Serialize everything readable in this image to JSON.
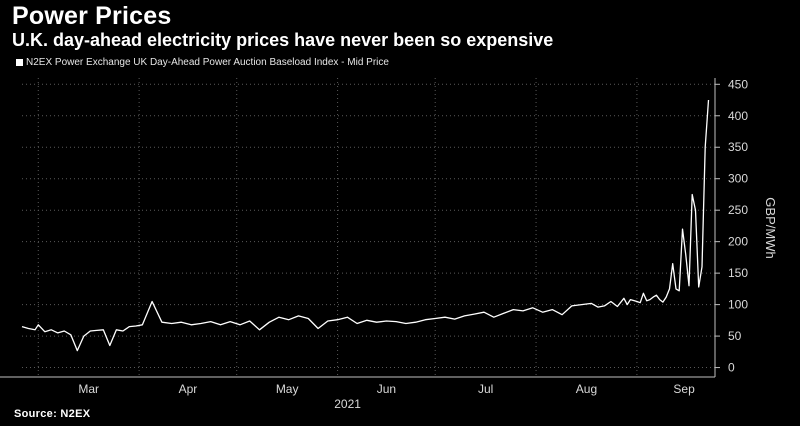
{
  "title": "Power Prices",
  "subtitle": "U.K. day-ahead electricity prices have never been so expensive",
  "source": "Source: N2EX",
  "colors": {
    "background": "#000000",
    "line": "#ffffff",
    "grid": "#5a5a5a"
  },
  "chart_data": {
    "type": "line",
    "series": [
      {
        "name": "N2EX Power Exchange UK Day-Ahead Power Auction Baseload Index - Mid Price",
        "x": [
          "2021-02-24",
          "2021-02-26",
          "2021-02-28",
          "2021-03-01",
          "2021-03-03",
          "2021-03-05",
          "2021-03-07",
          "2021-03-09",
          "2021-03-11",
          "2021-03-13",
          "2021-03-15",
          "2021-03-17",
          "2021-03-19",
          "2021-03-21",
          "2021-03-23",
          "2021-03-25",
          "2021-03-27",
          "2021-03-29",
          "2021-03-31",
          "2021-04-02",
          "2021-04-05",
          "2021-04-08",
          "2021-04-11",
          "2021-04-14",
          "2021-04-17",
          "2021-04-20",
          "2021-04-23",
          "2021-04-26",
          "2021-04-29",
          "2021-05-02",
          "2021-05-05",
          "2021-05-08",
          "2021-05-11",
          "2021-05-14",
          "2021-05-17",
          "2021-05-20",
          "2021-05-23",
          "2021-05-26",
          "2021-05-29",
          "2021-06-01",
          "2021-06-04",
          "2021-06-07",
          "2021-06-10",
          "2021-06-13",
          "2021-06-16",
          "2021-06-19",
          "2021-06-22",
          "2021-06-25",
          "2021-06-28",
          "2021-07-01",
          "2021-07-04",
          "2021-07-07",
          "2021-07-10",
          "2021-07-13",
          "2021-07-16",
          "2021-07-19",
          "2021-07-22",
          "2021-07-25",
          "2021-07-28",
          "2021-07-31",
          "2021-08-03",
          "2021-08-06",
          "2021-08-09",
          "2021-08-12",
          "2021-08-15",
          "2021-08-18",
          "2021-08-20",
          "2021-08-22",
          "2021-08-24",
          "2021-08-26",
          "2021-08-28",
          "2021-08-29",
          "2021-08-30",
          "2021-09-01",
          "2021-09-02",
          "2021-09-03",
          "2021-09-04",
          "2021-09-05",
          "2021-09-06",
          "2021-09-07",
          "2021-09-08",
          "2021-09-09",
          "2021-09-10"
        ],
        "values": [
          65,
          62,
          60,
          68,
          57,
          60,
          55,
          58,
          52,
          27,
          50,
          58,
          59,
          60,
          35,
          60,
          58,
          65,
          66,
          68,
          105,
          72,
          70,
          72,
          68,
          70,
          73,
          68,
          73,
          68,
          74,
          60,
          72,
          80,
          76,
          82,
          78,
          62,
          74,
          76,
          80,
          70,
          75,
          72,
          74,
          73,
          70,
          72,
          76,
          78,
          80,
          77,
          82,
          85,
          88,
          80,
          86,
          92,
          90,
          95,
          88,
          92,
          84,
          98,
          100,
          102,
          96,
          98,
          105,
          97,
          110,
          100,
          108,
          105,
          103,
          118,
          106,
          108,
          112,
          115,
          108,
          104,
          112
        ]
      }
    ],
    "tail_points": [
      {
        "x": "2021-09-10",
        "y": 112
      },
      {
        "x": "2021-09-11",
        "y": 125
      },
      {
        "x": "2021-09-12",
        "y": 165
      },
      {
        "x": "2021-09-13",
        "y": 125
      },
      {
        "x": "2021-09-14",
        "y": 122
      },
      {
        "x": "2021-09-15",
        "y": 220
      },
      {
        "x": "2021-09-16",
        "y": 180
      },
      {
        "x": "2021-09-17",
        "y": 130
      },
      {
        "x": "2021-09-18",
        "y": 275
      },
      {
        "x": "2021-09-19",
        "y": 250
      },
      {
        "x": "2021-09-20",
        "y": 128
      },
      {
        "x": "2021-09-21",
        "y": 160
      },
      {
        "x": "2021-09-22",
        "y": 350
      },
      {
        "x": "2021-09-23",
        "y": 425
      }
    ],
    "x_tick_labels": [
      "Mar",
      "Apr",
      "May",
      "Jun",
      "Jul",
      "Aug",
      "Sep"
    ],
    "x_axis_year": "2021",
    "y_ticks": [
      0,
      50,
      100,
      150,
      200,
      250,
      300,
      350,
      400,
      450
    ],
    "ylabel": "GBP/MWh",
    "ylim": [
      -15,
      460
    ],
    "grid": true,
    "legend_position": "top-left"
  }
}
